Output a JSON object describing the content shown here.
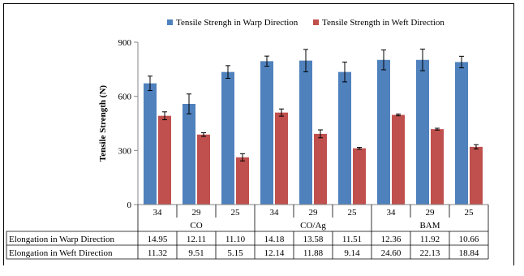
{
  "chart_data": {
    "type": "bar",
    "ylabel": "Tensile Strength (N)",
    "ylim": [
      0,
      900
    ],
    "yticks": [
      0,
      300,
      600,
      900
    ],
    "grid": false,
    "legend_position": "top",
    "categories": [
      "34",
      "29",
      "25",
      "34",
      "29",
      "25",
      "34",
      "29",
      "25"
    ],
    "groups": [
      {
        "label": "CO",
        "span": 3
      },
      {
        "label": "CO/Ag",
        "span": 3
      },
      {
        "label": "BAM",
        "span": 3
      }
    ],
    "series": [
      {
        "name": "Tensile Strengh in Warp Direction",
        "color": "#4f81bd",
        "values": [
          672,
          558,
          735,
          795,
          798,
          735,
          802,
          802,
          790
        ],
        "errors": [
          40,
          55,
          35,
          28,
          62,
          55,
          55,
          60,
          32
        ]
      },
      {
        "name": "Tensile Strength in Weft Direction",
        "color": "#c0504d",
        "values": [
          492,
          388,
          262,
          510,
          392,
          312,
          497,
          418,
          320
        ],
        "errors": [
          22,
          10,
          20,
          20,
          22,
          5,
          5,
          5,
          12
        ]
      }
    ],
    "table": {
      "rows": [
        {
          "label": "Elongation in Warp Direction",
          "values": [
            "14.95",
            "12.11",
            "11.10",
            "14.18",
            "13.58",
            "11.51",
            "12.36",
            "11.92",
            "10.66"
          ]
        },
        {
          "label": "Elongation in Weft Direction",
          "values": [
            "11.32",
            "9.51",
            "5.15",
            "12.14",
            "11.88",
            "9.14",
            "24.60",
            "22.13",
            "18.84"
          ]
        }
      ]
    }
  }
}
